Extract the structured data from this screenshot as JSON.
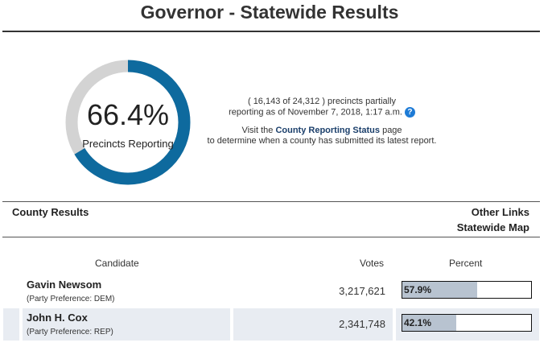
{
  "header": {
    "title": "Governor - Statewide Results"
  },
  "reporting": {
    "percent_label": "66.4%",
    "percent_value": 66.4,
    "caption": "Precincts Reporting",
    "precincts_line1": "( 16,143 of 24,312 ) precincts partially",
    "precincts_line2": "reporting as of November 7, 2018, 1:17 a.m.",
    "help_icon": "?",
    "visit_prefix": "Visit the ",
    "visit_link": "County Reporting Status",
    "visit_suffix": " page",
    "visit_line2": "to determine when a county has submitted its latest report.",
    "colors": {
      "filled": "#0e6a9e",
      "remaining": "#d3d3d3"
    }
  },
  "links": {
    "county_results": "County Results",
    "other_links": "Other Links",
    "statewide_map": "Statewide Map"
  },
  "table": {
    "headers": {
      "candidate": "Candidate",
      "votes": "Votes",
      "percent": "Percent"
    },
    "rows": [
      {
        "name": "Gavin Newsom",
        "party": "(Party Preference: DEM)",
        "votes": "3,217,621",
        "percent_label": "57.9%",
        "percent": 57.9
      },
      {
        "name": "John H. Cox",
        "party": "(Party Preference: REP)",
        "votes": "2,341,748",
        "percent_label": "42.1%",
        "percent": 42.1
      }
    ]
  }
}
